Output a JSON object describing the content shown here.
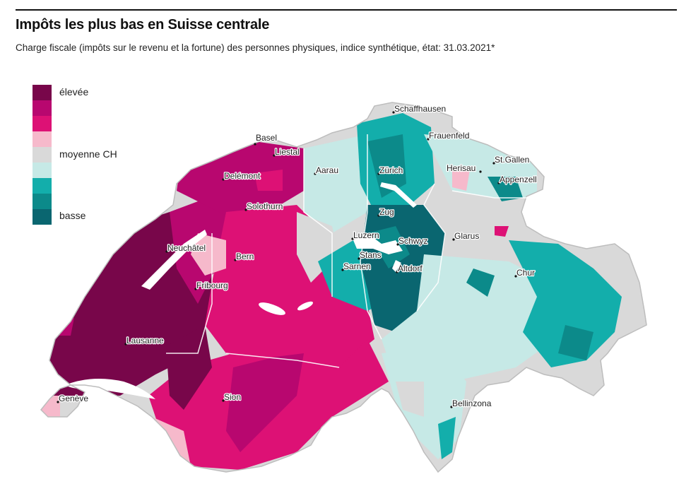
{
  "title": "Impôts les plus bas en Suisse centrale",
  "subtitle": "Charge fiscale (impôts sur le revenu et la fortune) des personnes physiques, indice synthétique, état: 31.03.2021*",
  "legend": {
    "colors": [
      "#78064a",
      "#b8076f",
      "#dd1175",
      "#f6b9cb",
      "#d9d9d9",
      "#c6e9e6",
      "#13aeab",
      "#0c8a8a",
      "#0a6670"
    ],
    "label_high": "élevée",
    "label_mid": "moyenne CH",
    "label_low": "basse"
  },
  "cities": {
    "basel": "Basel",
    "liestal": "Liestal",
    "delemont": "Delémont",
    "solothurn": "Solothurn",
    "aarau": "Aarau",
    "zurich": "Zürich",
    "schaffhausen": "Schaffhausen",
    "frauenfeld": "Frauenfeld",
    "stgallen": "St.Gallen",
    "herisau": "Herisau",
    "appenzell": "Appenzell",
    "zug": "Zug",
    "luzern": "Luzern",
    "schwyz": "Schwyz",
    "glarus": "Glarus",
    "stans": "Stans",
    "sarnen": "Sarnen",
    "altdorf": "Altdorf",
    "neuchatel": "Neuchâtel",
    "bern": "Bern",
    "fribourg": "Fribourg",
    "chur": "Chur",
    "lausanne": "Lausanne",
    "sion": "Sion",
    "geneve": "Genève",
    "bellinzona": "Bellinzona"
  }
}
